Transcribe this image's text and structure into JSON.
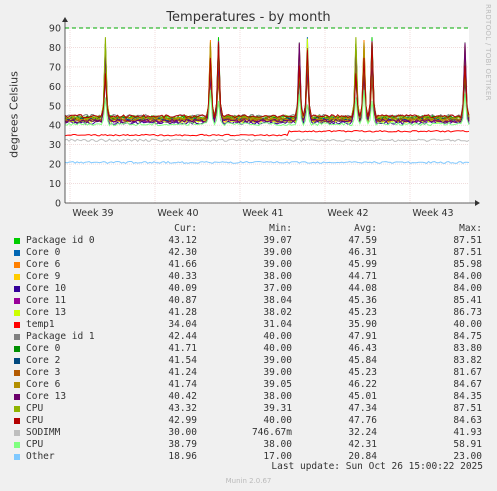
{
  "chart_data": {
    "type": "line",
    "title": "Temperatures - by month",
    "ylabel": "degrees Celsius",
    "ylim": [
      0,
      90
    ],
    "yticks": [
      0,
      10,
      20,
      30,
      40,
      50,
      60,
      70,
      80,
      90
    ],
    "xticks": [
      "Week 39",
      "Week 40",
      "Week 41",
      "Week 42",
      "Week 43"
    ],
    "warning_line": 90,
    "side_text": "RRDTOOL / TOBI OETIKER",
    "columns": [
      "Cur:",
      "Min:",
      "Avg:",
      "Max:"
    ],
    "series": [
      {
        "name": "Package id 0",
        "color": "#00cc00",
        "cur": "43.12",
        "min": "39.07",
        "avg": "47.59",
        "max": "87.51"
      },
      {
        "name": "Core 0",
        "color": "#0066b3",
        "cur": "42.30",
        "min": "39.00",
        "avg": "46.31",
        "max": "87.51"
      },
      {
        "name": "Core 6",
        "color": "#ff8000",
        "cur": "41.66",
        "min": "39.00",
        "avg": "45.99",
        "max": "85.98"
      },
      {
        "name": "Core 9",
        "color": "#ffcc00",
        "cur": "40.33",
        "min": "38.00",
        "avg": "44.71",
        "max": "84.00"
      },
      {
        "name": "Core 10",
        "color": "#330099",
        "cur": "40.09",
        "min": "37.00",
        "avg": "44.08",
        "max": "84.00"
      },
      {
        "name": "Core 11",
        "color": "#990099",
        "cur": "40.87",
        "min": "38.04",
        "avg": "45.36",
        "max": "85.41"
      },
      {
        "name": "Core 13",
        "color": "#ccff00",
        "cur": "41.28",
        "min": "38.02",
        "avg": "45.23",
        "max": "86.73"
      },
      {
        "name": "temp1",
        "color": "#ff0000",
        "cur": "34.04",
        "min": "31.04",
        "avg": "35.90",
        "max": "40.00"
      },
      {
        "name": "Package id 1",
        "color": "#808080",
        "cur": "42.44",
        "min": "40.00",
        "avg": "47.91",
        "max": "84.75"
      },
      {
        "name": "Core 0",
        "color": "#008f00",
        "cur": "41.71",
        "min": "40.00",
        "avg": "46.43",
        "max": "83.80"
      },
      {
        "name": "Core 2",
        "color": "#00487d",
        "cur": "41.54",
        "min": "39.00",
        "avg": "45.84",
        "max": "83.82"
      },
      {
        "name": "Core 3",
        "color": "#b35a00",
        "cur": "41.24",
        "min": "39.00",
        "avg": "45.23",
        "max": "81.67"
      },
      {
        "name": "Core 6",
        "color": "#b38f00",
        "cur": "41.74",
        "min": "39.05",
        "avg": "46.22",
        "max": "84.67"
      },
      {
        "name": "Core 13",
        "color": "#6b006b",
        "cur": "40.42",
        "min": "38.00",
        "avg": "45.01",
        "max": "84.35"
      },
      {
        "name": "CPU",
        "color": "#8fb300",
        "cur": "43.32",
        "min": "39.31",
        "avg": "47.34",
        "max": "87.51"
      },
      {
        "name": "CPU",
        "color": "#b30000",
        "cur": "42.99",
        "min": "40.00",
        "avg": "47.76",
        "max": "84.63"
      },
      {
        "name": "SODIMM",
        "color": "#bebebe",
        "cur": "30.00",
        "min": "746.67m",
        "avg": "32.24",
        "max": "41.93"
      },
      {
        "name": "CPU",
        "color": "#80ff80",
        "cur": "38.79",
        "min": "38.00",
        "avg": "42.31",
        "max": "58.91"
      },
      {
        "name": "Other",
        "color": "#80c9ff",
        "cur": "18.96",
        "min": "17.00",
        "avg": "20.84",
        "max": "23.00"
      }
    ]
  },
  "footer": {
    "last_update": "Last update: Sun Oct 26 15:00:22 2025",
    "munin": "Munin 2.0.67"
  }
}
